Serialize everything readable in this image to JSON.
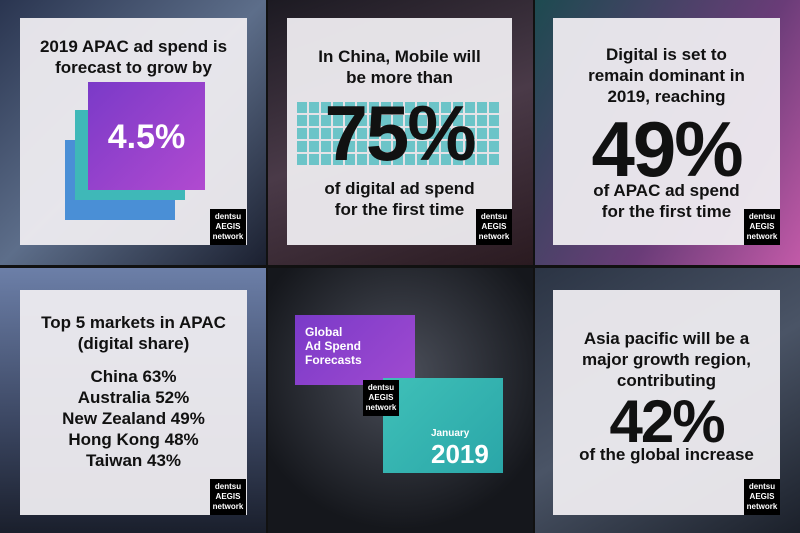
{
  "logo": [
    "dentsu",
    "AEGIS",
    "network"
  ],
  "tiles": [
    {
      "heading": [
        "2019 APAC ad spend is",
        "forecast to grow by"
      ],
      "figure": "4.5%"
    },
    {
      "heading": [
        "In China, Mobile will",
        "be more than"
      ],
      "figure": "75%",
      "footer": [
        "of digital ad spend",
        "for the first time"
      ]
    },
    {
      "heading": [
        "Digital is set to",
        "remain dominant in",
        "2019, reaching"
      ],
      "figure": "49%",
      "footer": [
        "of APAC ad spend",
        "for the first time"
      ]
    },
    {
      "heading": [
        "Top 5 markets in APAC",
        "(digital share)"
      ],
      "list": [
        "China 63%",
        "Australia 52%",
        "New Zealand 49%",
        "Hong Kong 48%",
        "Taiwan 43%"
      ]
    },
    {
      "heading": [
        "Global",
        "Ad Spend",
        "Forecasts"
      ],
      "month": "January",
      "figure": "2019"
    },
    {
      "heading": [
        "Asia pacific will be a",
        "major growth region,",
        "contributing"
      ],
      "figure": "42%",
      "footer": [
        "of the global increase"
      ]
    }
  ]
}
